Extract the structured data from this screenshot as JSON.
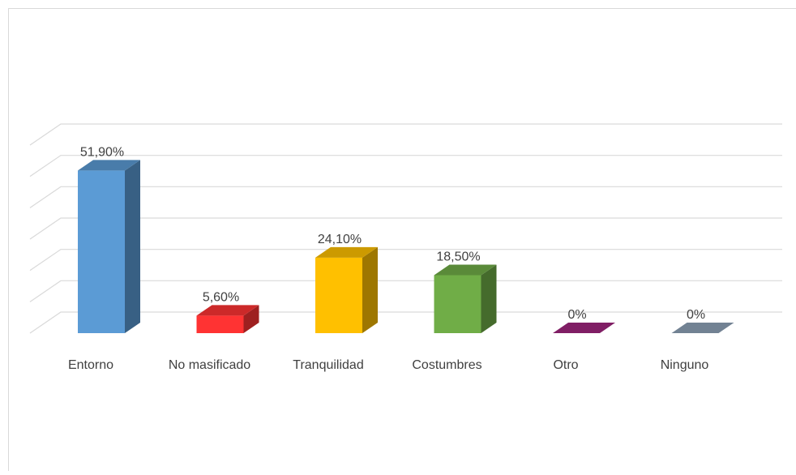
{
  "chart_data": {
    "type": "bar3d",
    "categories": [
      "Entorno",
      "No masificado",
      "Tranquilidad",
      "Costumbres",
      "Otro",
      "Ninguno"
    ],
    "values": [
      51.9,
      5.6,
      24.1,
      18.5,
      0,
      0
    ],
    "value_labels": [
      "51,90%",
      "5,60%",
      "24,10%",
      "18,50%",
      "0%",
      "0%"
    ],
    "colors": [
      "#5b9bd5",
      "#ff3333",
      "#ffc000",
      "#70ad47",
      "#a0267e",
      "#8fa3b8"
    ],
    "ylim": [
      0,
      60
    ],
    "yticks": [
      0,
      10,
      20,
      30,
      40,
      50,
      60
    ],
    "grid": true
  }
}
